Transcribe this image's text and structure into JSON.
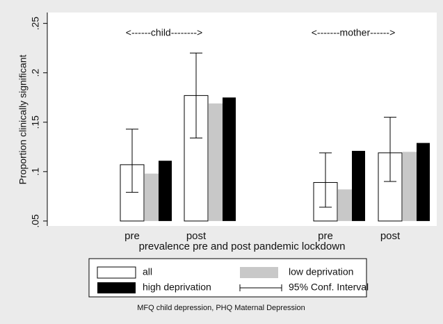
{
  "chart_data": {
    "type": "bar",
    "y_label": "Proportion clinically significant",
    "x_label": "prevalence pre and post pandemic lockdown",
    "annotations": [
      "<------child-------->",
      "<-------mother------>"
    ],
    "note": "MFQ child depression, PHQ Maternal Depression",
    "categories": [
      "pre",
      "post",
      "pre",
      "post"
    ],
    "series": [
      {
        "name": "all",
        "color": "#ffffff",
        "values": [
          0.107,
          0.177,
          0.089,
          0.119
        ],
        "ci_low": [
          0.079,
          0.134,
          0.064,
          0.09
        ],
        "ci_high": [
          0.143,
          0.22,
          0.119,
          0.155
        ]
      },
      {
        "name": "low deprivation",
        "color": "#c8c8c8",
        "values": [
          0.098,
          0.169,
          0.082,
          0.12
        ]
      },
      {
        "name": "high deprivation",
        "color": "#000000",
        "values": [
          0.111,
          0.175,
          0.121,
          0.129
        ]
      }
    ],
    "ci_label": "95% Conf. Interval",
    "ylim": [
      0.045,
      0.261
    ],
    "yticks": [
      {
        "value": 0.05,
        "label": ".05"
      },
      {
        "value": 0.1,
        "label": ".1"
      },
      {
        "value": 0.15,
        "label": ".15"
      },
      {
        "value": 0.2,
        "label": ".2"
      },
      {
        "value": 0.25,
        "label": ".25"
      }
    ],
    "grid": false
  }
}
